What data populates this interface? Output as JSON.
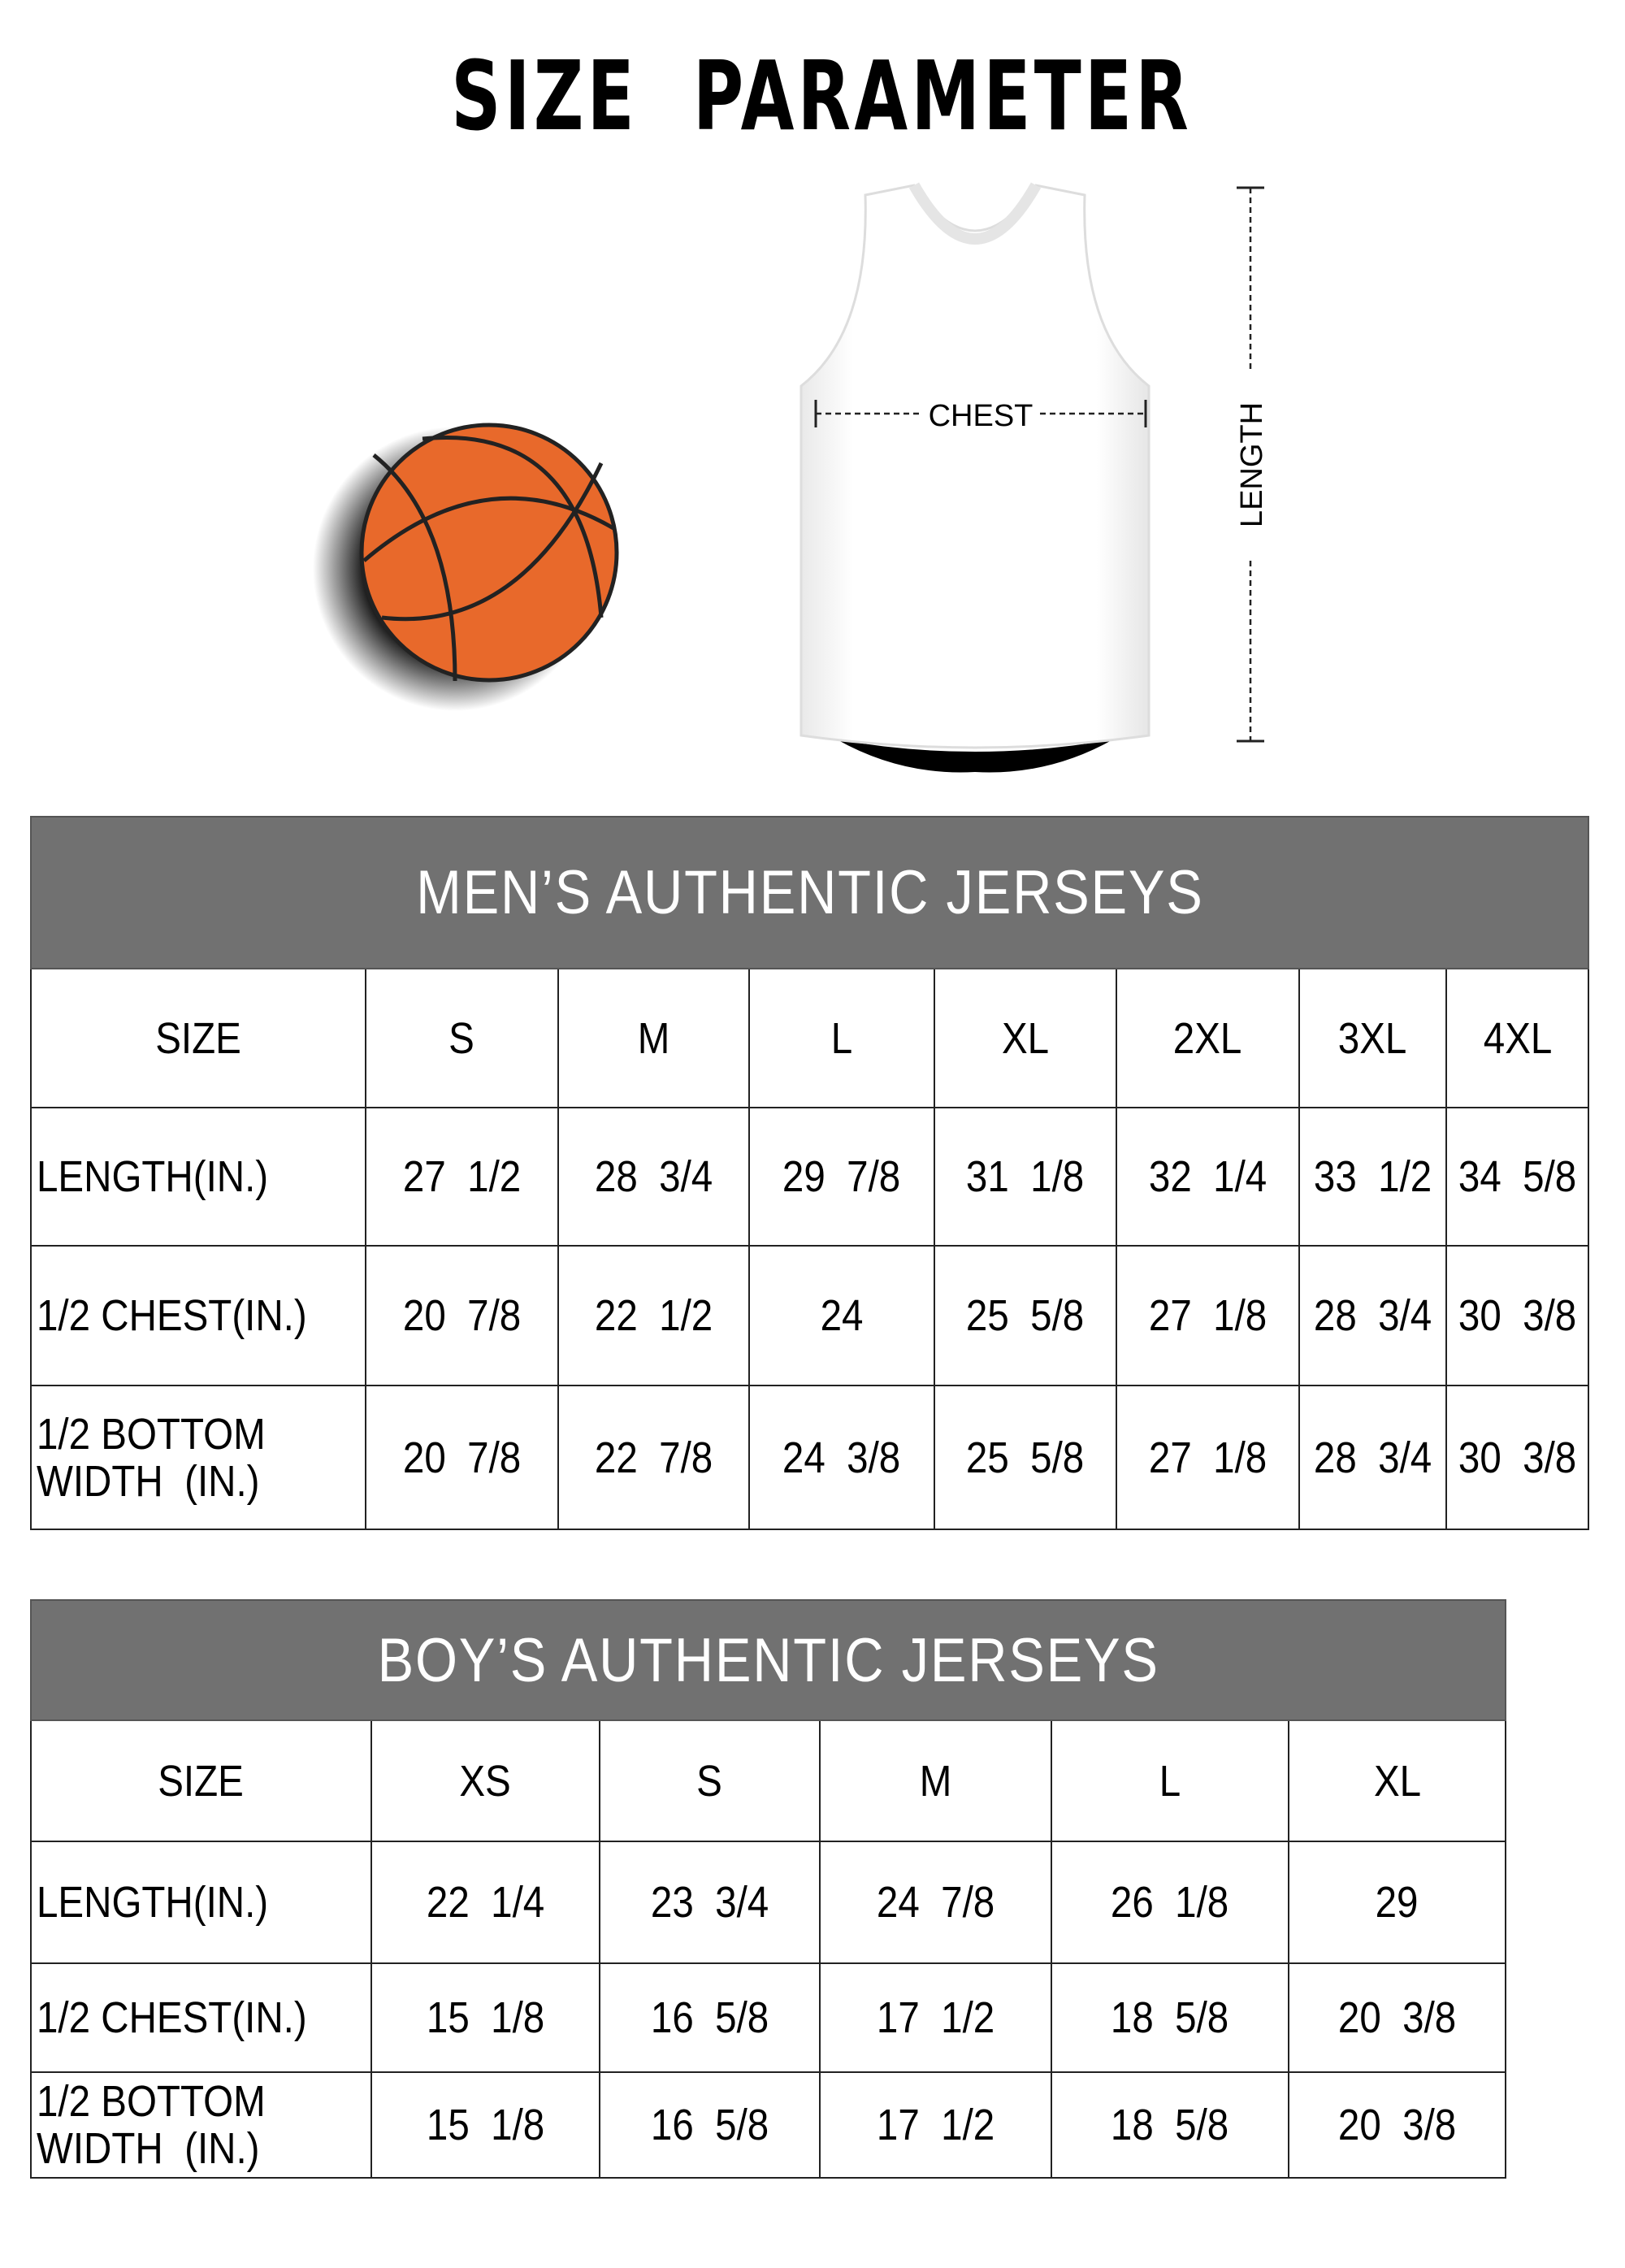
{
  "title": "SIZE  PARAMETER",
  "diagram": {
    "chest_label": "CHEST",
    "length_label": "LENGTH",
    "ball_color": "#e8692b",
    "header_gray": "#717171"
  },
  "men": {
    "title": "MEN’S AUTHENTIC JERSEYS",
    "columns": [
      "SIZE",
      "S",
      "M",
      "L",
      "XL",
      "2XL",
      "3XL",
      "4XL"
    ],
    "rows": [
      [
        "LENGTH(IN.)",
        "27  1/2",
        "28  3/4",
        "29  7/8",
        "31  1/8",
        "32  1/4",
        "33  1/2",
        "34  5/8"
      ],
      [
        "1/2 CHEST(IN.)",
        "20  7/8",
        "22  1/2",
        "24",
        "25  5/8",
        "27  1/8",
        "28  3/4",
        "30  3/8"
      ],
      [
        "1/2 BOTTOM\nWIDTH  (IN.)",
        "20  7/8",
        "22  7/8",
        "24  3/8",
        "25  5/8",
        "27  1/8",
        "28  3/4",
        "30  3/8"
      ]
    ]
  },
  "boy": {
    "title": "BOY’S AUTHENTIC JERSEYS",
    "columns": [
      "SIZE",
      "XS",
      "S",
      "M",
      "L",
      "XL"
    ],
    "rows": [
      [
        "LENGTH(IN.)",
        "22  1/4",
        "23  3/4",
        "24  7/8",
        "26  1/8",
        "29"
      ],
      [
        "1/2 CHEST(IN.)",
        "15  1/8",
        "16  5/8",
        "17  1/2",
        "18  5/8",
        "20  3/8"
      ],
      [
        "1/2 BOTTOM\nWIDTH  (IN.)",
        "15  1/8",
        "16  5/8",
        "17  1/2",
        "18  5/8",
        "20  3/8"
      ]
    ]
  }
}
